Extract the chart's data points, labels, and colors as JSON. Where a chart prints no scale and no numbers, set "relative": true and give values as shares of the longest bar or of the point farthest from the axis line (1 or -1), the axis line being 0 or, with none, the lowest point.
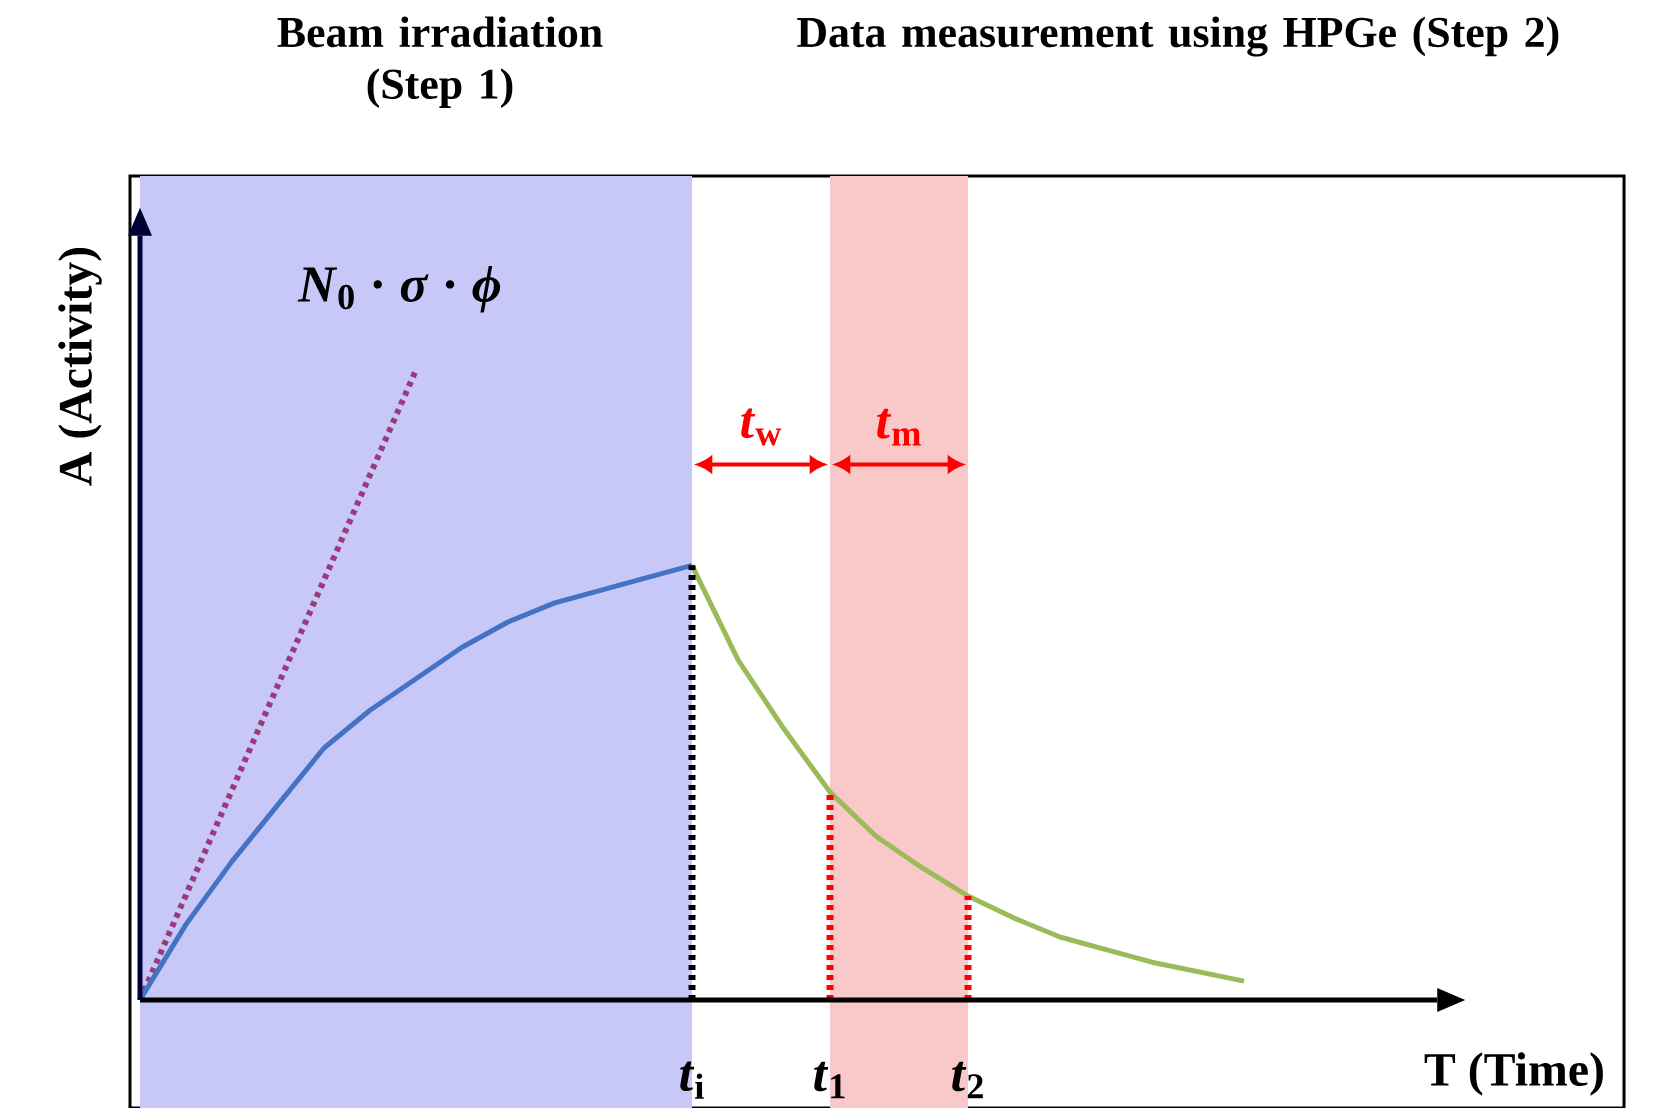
{
  "chart_data": {
    "type": "line",
    "relative": true,
    "marker": "none",
    "xlabel": "T (Time)",
    "ylabel": "A (Activity)",
    "categories": [
      null,
      null,
      null,
      null,
      null,
      null,
      null,
      null,
      null,
      null,
      null,
      null,
      "*t*$_{i}$",
      null,
      null,
      "*t*$_{1}$",
      null,
      null,
      "*t*$_{2}$",
      null,
      null,
      null,
      null,
      null,
      null,
      null,
      null,
      null,
      null
    ],
    "series": [
      {
        "color": "#9b3a7a",
        "line_style": "dotted",
        "values": [
          0,
          null,
          null,
          null,
          null,
          null,
          1,
          null,
          null,
          null,
          null,
          null,
          null,
          null,
          null,
          null,
          null,
          null,
          null,
          null,
          null,
          null,
          null,
          null,
          null,
          null,
          null,
          null,
          null
        ]
      },
      {
        "color": "#4472c4",
        "line_style": "solid",
        "values": [
          0,
          0.12,
          0.22,
          0.31,
          0.4,
          0.46,
          0.51,
          0.56,
          0.6,
          0.63,
          0.65,
          0.67,
          0.69,
          null,
          null,
          null,
          null,
          null,
          null,
          null,
          null,
          null,
          null,
          null,
          null,
          null,
          null,
          null,
          null
        ]
      },
      {
        "color": "#9bbb59",
        "line_style": "solid",
        "values": [
          null,
          null,
          null,
          null,
          null,
          null,
          null,
          null,
          null,
          null,
          null,
          null,
          0.69,
          0.54,
          0.43,
          0.33,
          0.26,
          0.21,
          0.165,
          0.13,
          0.1,
          0.08,
          0.06,
          0.045,
          0.03,
          null,
          null,
          null,
          null
        ]
      }
    ],
    "ref_lines": [
      {
        "axis": "x",
        "value": "*t*$_{i}$",
        "color": "#000000",
        "line_style": "dotted"
      },
      {
        "axis": "x",
        "value": "*t*$_{1}$",
        "color": "#ff0000",
        "line_style": "dotted"
      },
      {
        "axis": "x",
        "value": "*t*$_{2}$",
        "color": "#ff0000",
        "line_style": "dotted"
      }
    ],
    "bands": [
      {
        "axis": "x",
        "from": "*t*$_{1}$",
        "to": "*t*$_{2}$",
        "color": "#f9c8c8"
      }
    ],
    "annotations": [
      "Beam irradiation (Step 1)",
      "Data measurement using HPGe (Step 2)",
      "*N*$_{0}$ · *σ* · *ϕ*",
      "*t*$_{w}$",
      "*t*$_{m}$"
    ]
  }
}
